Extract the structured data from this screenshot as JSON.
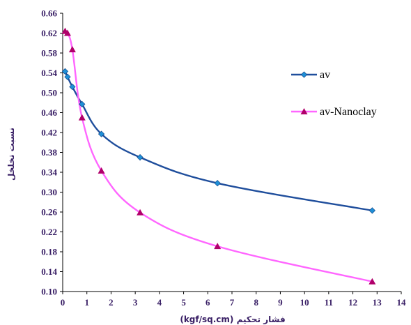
{
  "chart_data": {
    "type": "line",
    "xlabel": "فشار تحکیم (kgf/sq.cm)",
    "ylabel": "نسبت تخلخل",
    "xlim": [
      0,
      14
    ],
    "ylim": [
      0.1,
      0.66
    ],
    "x_ticks": [
      "0",
      "1",
      "2",
      "3",
      "4",
      "5",
      "6",
      "7",
      "8",
      "9",
      "10",
      "11",
      "12",
      "13",
      "14"
    ],
    "y_ticks": [
      "0.10",
      "0.14",
      "0.18",
      "0.22",
      "0.26",
      "0.30",
      "0.34",
      "0.38",
      "0.42",
      "0.46",
      "0.50",
      "0.54",
      "0.58",
      "0.62",
      "0.66"
    ],
    "grid": false,
    "legend_position": "right",
    "series": [
      {
        "name": "av",
        "color": "#1f4e9c",
        "marker_color": "#1f8fd6",
        "marker": "diamond",
        "x": [
          0.1,
          0.2,
          0.4,
          0.8,
          1.6,
          3.2,
          6.4,
          12.8
        ],
        "y": [
          0.543,
          0.532,
          0.512,
          0.477,
          0.417,
          0.37,
          0.318,
          0.263
        ]
      },
      {
        "name": "av-Nanoclay",
        "color": "#ff66ff",
        "marker_color": "#b0006a",
        "marker": "triangle",
        "x": [
          0.1,
          0.2,
          0.4,
          0.8,
          1.6,
          3.2,
          6.4,
          12.8
        ],
        "y": [
          0.624,
          0.62,
          0.587,
          0.45,
          0.343,
          0.259,
          0.191,
          0.12
        ]
      }
    ]
  }
}
